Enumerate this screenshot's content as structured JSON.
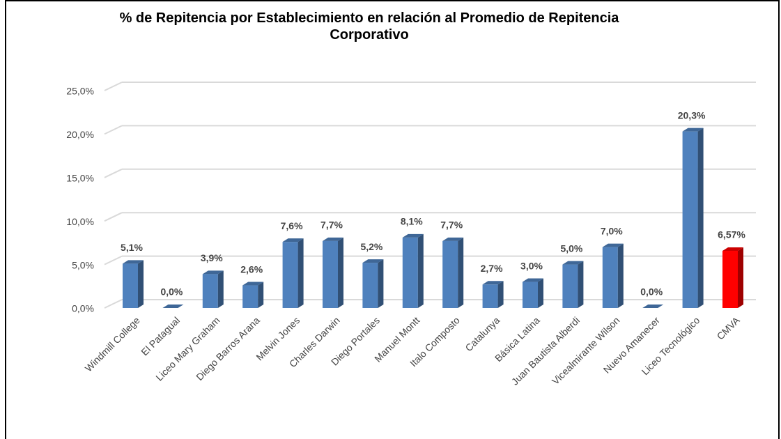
{
  "chart_data": {
    "type": "bar3d",
    "title": "% de Repitencia por Establecimiento en relación al Promedio de Repitencia Corporativo",
    "categories": [
      "Windmill College",
      "El Patagual",
      "Liceo Mary Graham",
      "Diego Barros Arana",
      "Melvin Jones",
      "Charles Darwin",
      "Diego Portales",
      "Manuel Montt",
      "Italo Composto",
      "Catalunya",
      "Básica Latina",
      "Juan Bautista Alberdi",
      "Vicealmirante Wilson",
      "Nuevo Amanecer",
      "Liceo Tecnológico",
      "CMVA"
    ],
    "values": [
      5.1,
      0.0,
      3.9,
      2.6,
      7.6,
      7.7,
      5.2,
      8.1,
      7.7,
      2.7,
      3.0,
      5.0,
      7.0,
      0.0,
      20.3,
      6.57
    ],
    "value_labels": [
      "5,1%",
      "0,0%",
      "3,9%",
      "2,6%",
      "7,6%",
      "7,7%",
      "5,2%",
      "8,1%",
      "7,7%",
      "2,7%",
      "3,0%",
      "5,0%",
      "7,0%",
      "0,0%",
      "20,3%",
      "6,57%"
    ],
    "colors": [
      "#4f81bd",
      "#4f81bd",
      "#4f81bd",
      "#4f81bd",
      "#4f81bd",
      "#4f81bd",
      "#4f81bd",
      "#4f81bd",
      "#4f81bd",
      "#4f81bd",
      "#4f81bd",
      "#4f81bd",
      "#4f81bd",
      "#4f81bd",
      "#4f81bd",
      "#ff0000"
    ],
    "ylim": [
      0,
      25
    ],
    "yticks": [
      {
        "value": 0,
        "label": "0,0%"
      },
      {
        "value": 5,
        "label": "5,0%"
      },
      {
        "value": 10,
        "label": "10,0%"
      },
      {
        "value": 15,
        "label": "15,0%"
      },
      {
        "value": 20,
        "label": "20,0%"
      },
      {
        "value": 25,
        "label": "25,0%"
      }
    ],
    "grid": true
  }
}
